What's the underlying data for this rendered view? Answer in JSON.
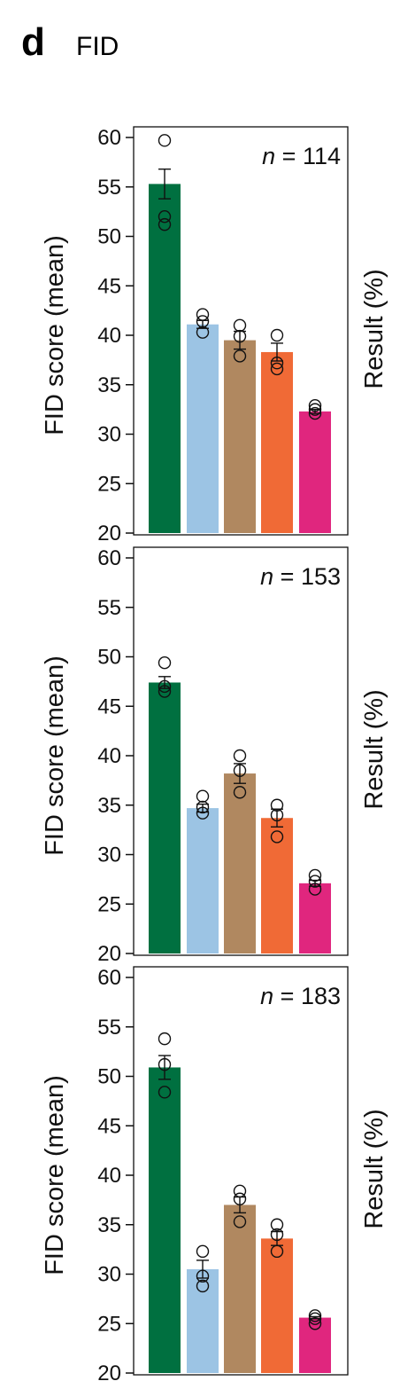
{
  "figure": {
    "panel_letter": "d",
    "panel_title": "FID",
    "right_axis_label": "Result (%)"
  },
  "colors": [
    "#007040",
    "#9cc4e4",
    "#b08860",
    "#f06a36",
    "#e0267e"
  ],
  "chart_data": [
    {
      "type": "bar",
      "ylabel": "FID score (mean)",
      "annotation": {
        "italic": "n",
        "text": " = 114"
      },
      "ylim": [
        20,
        60
      ],
      "yticks": [
        20,
        25,
        30,
        35,
        40,
        45,
        50,
        55,
        60
      ],
      "values": [
        55.3,
        41.1,
        39.5,
        38.3,
        32.3
      ],
      "errors": [
        1.5,
        0.4,
        0.9,
        0.9,
        0.2
      ],
      "points": [
        [
          59.7,
          52.0,
          51.2
        ],
        [
          42.1,
          41.4,
          40.3
        ],
        [
          41.0,
          39.9,
          37.9
        ],
        [
          40.0,
          37.2,
          36.6
        ],
        [
          32.9,
          32.5,
          32.1
        ]
      ]
    },
    {
      "type": "bar",
      "ylabel": "FID score (mean)",
      "annotation": {
        "italic": "n",
        "text": " = 153"
      },
      "ylim": [
        20,
        60
      ],
      "yticks": [
        20,
        25,
        30,
        35,
        40,
        45,
        50,
        55,
        60
      ],
      "values": [
        47.4,
        34.7,
        38.2,
        33.7,
        27.1
      ],
      "errors": [
        0.6,
        0.4,
        1.0,
        0.9,
        0.3
      ],
      "points": [
        [
          49.4,
          47.0,
          46.5
        ],
        [
          35.9,
          34.8,
          34.2
        ],
        [
          40.0,
          38.5,
          36.3
        ],
        [
          35.0,
          34.0,
          31.8
        ],
        [
          27.9,
          27.3,
          26.5
        ]
      ]
    },
    {
      "type": "bar",
      "ylabel": "FID score (mean)",
      "annotation": {
        "italic": "n",
        "text": " = 183"
      },
      "ylim": [
        20,
        60
      ],
      "yticks": [
        20,
        25,
        30,
        35,
        40,
        45,
        50,
        55,
        60
      ],
      "values": [
        50.9,
        30.5,
        37.0,
        33.6,
        25.6
      ],
      "errors": [
        1.2,
        0.9,
        0.8,
        0.7,
        0.1
      ],
      "points": [
        [
          53.8,
          51.2,
          48.4
        ],
        [
          32.3,
          29.8,
          28.8
        ],
        [
          38.4,
          37.6,
          35.3
        ],
        [
          35.0,
          34.0,
          32.3
        ],
        [
          25.8,
          25.5,
          25.0
        ]
      ]
    }
  ]
}
